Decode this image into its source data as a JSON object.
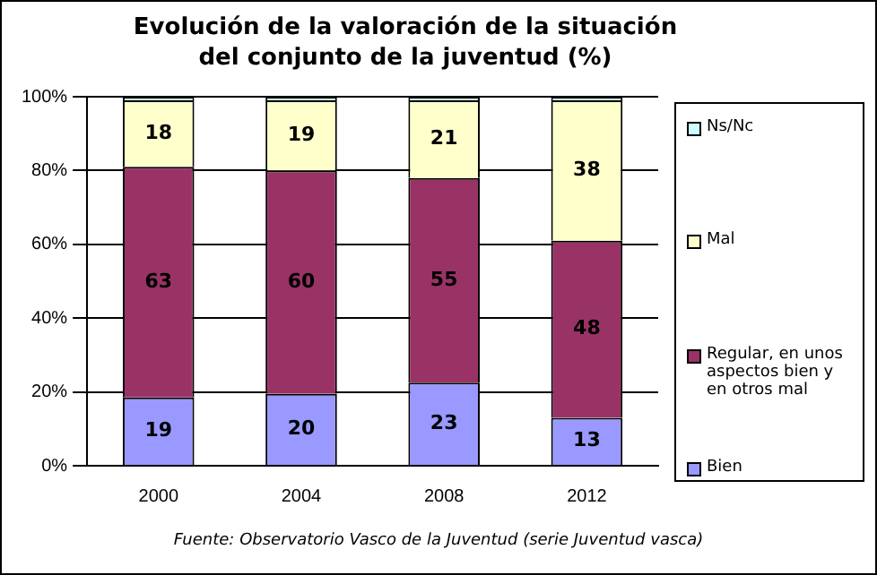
{
  "chart_data": {
    "type": "bar",
    "stacked": true,
    "title": "Evolución de la valoración de la situación del conjunto de la juventud (%)",
    "categories": [
      "2000",
      "2004",
      "2008",
      "2012"
    ],
    "series": [
      {
        "name": "Bien",
        "color": "#9999ff",
        "values": [
          18.5,
          19.5,
          22.5,
          13
        ],
        "value_labels": [
          "19",
          "20",
          "23",
          "13"
        ]
      },
      {
        "name": "Regular, en unos aspectos bien y en otros mal",
        "color": "#993366",
        "values": [
          62.5,
          60.5,
          55.5,
          48
        ],
        "value_labels": [
          "63",
          "60",
          "55",
          "48"
        ]
      },
      {
        "name": "Mal",
        "color": "#ffffcc",
        "values": [
          18,
          19,
          21,
          38
        ],
        "value_labels": [
          "18",
          "19",
          "21",
          "38"
        ]
      },
      {
        "name": "Ns/Nc",
        "color": "#ccffff",
        "values": [
          1,
          1,
          1,
          1
        ],
        "value_labels": [
          null,
          null,
          null,
          null
        ]
      }
    ],
    "ylim": [
      0,
      100
    ],
    "yticks": [
      {
        "value": 0,
        "label": "0%"
      },
      {
        "value": 20,
        "label": "20%"
      },
      {
        "value": 40,
        "label": "40%"
      },
      {
        "value": 60,
        "label": "60%"
      },
      {
        "value": 80,
        "label": "80%"
      },
      {
        "value": 100,
        "label": "100%"
      }
    ],
    "grid": "y",
    "legend": "right",
    "annotations": [
      "Fuente: Observatorio Vasco de la Juventud (serie Juventud vasca)"
    ]
  }
}
